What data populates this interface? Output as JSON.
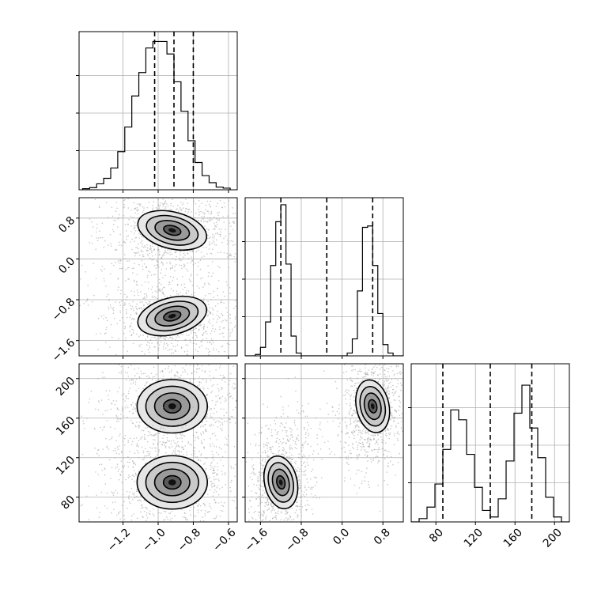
{
  "chart_data": {
    "type": "corner",
    "grid": true,
    "parameters": [
      {
        "index": 0,
        "range": [
          -1.45,
          -0.55
        ],
        "ticks": [
          -1.2,
          -1.0,
          -0.8,
          -0.6
        ],
        "tick_labels": [
          "−1.2",
          "−1.0",
          "−0.8",
          "−0.6"
        ],
        "quantiles": [
          -1.02,
          -0.91,
          -0.8
        ],
        "histogram": {
          "bin_edges": [
            -1.43,
            -1.39,
            -1.35,
            -1.31,
            -1.27,
            -1.23,
            -1.19,
            -1.15,
            -1.11,
            -1.07,
            -1.03,
            -0.99,
            -0.95,
            -0.91,
            -0.87,
            -0.83,
            -0.79,
            -0.75,
            -0.71,
            -0.67,
            -0.63,
            -0.59
          ],
          "counts": [
            2,
            4,
            11,
            21,
            40,
            70,
            115,
            172,
            215,
            260,
            272,
            272,
            249,
            198,
            144,
            90,
            50,
            26,
            13,
            5,
            3
          ],
          "ymax": 290
        }
      },
      {
        "index": 1,
        "range": [
          -1.9,
          1.2
        ],
        "ticks": [
          -1.6,
          -0.8,
          0.0,
          0.8
        ],
        "tick_labels": [
          "−1.6",
          "−0.8",
          "0.0",
          "0.8"
        ],
        "quantiles": [
          -1.2,
          -0.3,
          0.6
        ],
        "histogram": {
          "bin_edges": [
            -1.9,
            -1.8,
            -1.7,
            -1.6,
            -1.5,
            -1.4,
            -1.3,
            -1.2,
            -1.1,
            -1.0,
            -0.9,
            -0.8,
            -0.7,
            -0.6,
            -0.5,
            -0.4,
            -0.3,
            -0.2,
            -0.1,
            0.0,
            0.1,
            0.2,
            0.3,
            0.4,
            0.5,
            0.6,
            0.7,
            0.8,
            0.9,
            1.0,
            1.1,
            1.2
          ],
          "counts": [
            0,
            0,
            5,
            30,
            120,
            320,
            475,
            535,
            325,
            70,
            10,
            0,
            0,
            0,
            0,
            0,
            0,
            0,
            0,
            0,
            10,
            60,
            230,
            455,
            460,
            320,
            150,
            40,
            10,
            0,
            0
          ],
          "ymax": 560
        }
      },
      {
        "index": 2,
        "range": [
          55,
          215
        ],
        "ticks": [
          80,
          120,
          160,
          200
        ],
        "tick_labels": [
          "80",
          "120",
          "160",
          "200"
        ],
        "quantiles": [
          87,
          135,
          177
        ],
        "histogram": {
          "bin_edges": [
            55,
            63,
            71,
            79,
            87,
            95,
            103,
            111,
            119,
            127,
            135,
            143,
            151,
            159,
            167,
            175,
            183,
            191,
            199,
            207,
            215
          ],
          "counts": [
            0,
            10,
            45,
            115,
            220,
            340,
            310,
            205,
            105,
            35,
            15,
            70,
            185,
            330,
            415,
            285,
            195,
            75,
            15,
            0
          ],
          "ymax": 480
        }
      }
    ],
    "joint": [
      {
        "x_param": 0,
        "y_param": 1,
        "modes": [
          {
            "cx": -0.92,
            "cy": 0.56,
            "sx": 0.1,
            "sy": 0.2,
            "rot_deg": -14,
            "weight": 0.5
          },
          {
            "cx": -0.92,
            "cy": -1.12,
            "sx": 0.1,
            "sy": 0.2,
            "rot_deg": 14,
            "weight": 0.5
          }
        ]
      },
      {
        "x_param": 0,
        "y_param": 2,
        "modes": [
          {
            "cx": -0.92,
            "cy": 172,
            "sx": 0.1,
            "sy": 15,
            "rot_deg": 0,
            "weight": 0.5
          },
          {
            "cx": -0.92,
            "cy": 95,
            "sx": 0.1,
            "sy": 15,
            "rot_deg": 0,
            "weight": 0.5
          }
        ]
      },
      {
        "x_param": 1,
        "y_param": 2,
        "modes": [
          {
            "cx": -1.2,
            "cy": 95,
            "sx": 0.16,
            "sy": 15,
            "rot_deg": 12,
            "weight": 0.5
          },
          {
            "cx": 0.6,
            "cy": 172,
            "sx": 0.16,
            "sy": 15,
            "rot_deg": 12,
            "weight": 0.5
          }
        ]
      }
    ],
    "contour_levels_sigma": [
      0.5,
      1.0,
      1.5,
      2.0
    ]
  }
}
